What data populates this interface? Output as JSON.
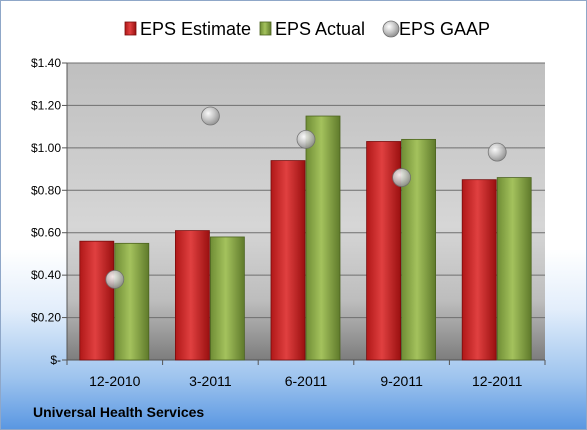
{
  "company": "Universal Health Services",
  "colors": {
    "estimate": "#d42a2a",
    "actual": "#8fb04a",
    "gaap": "#b8b8b8"
  },
  "chart_data": {
    "type": "bar",
    "categories": [
      "12-2010",
      "3-2011",
      "6-2011",
      "9-2011",
      "12-2011"
    ],
    "series": [
      {
        "name": "EPS Estimate",
        "kind": "bar",
        "values": [
          0.56,
          0.61,
          0.94,
          1.03,
          0.85
        ]
      },
      {
        "name": "EPS Actual",
        "kind": "bar",
        "values": [
          0.55,
          0.58,
          1.15,
          1.04,
          0.86
        ]
      },
      {
        "name": "EPS GAAP",
        "kind": "marker",
        "values": [
          0.38,
          1.15,
          1.04,
          0.86,
          0.98
        ]
      }
    ],
    "ylim": [
      0,
      1.4
    ],
    "y_ticks": [
      0,
      0.2,
      0.4,
      0.6,
      0.8,
      1.0,
      1.2,
      1.4
    ],
    "y_tick_labels": [
      "$-",
      "$0.20",
      "$0.40",
      "$0.60",
      "$0.80",
      "$1.00",
      "$1.20",
      "$1.40"
    ],
    "grid": true,
    "legend": "top"
  }
}
